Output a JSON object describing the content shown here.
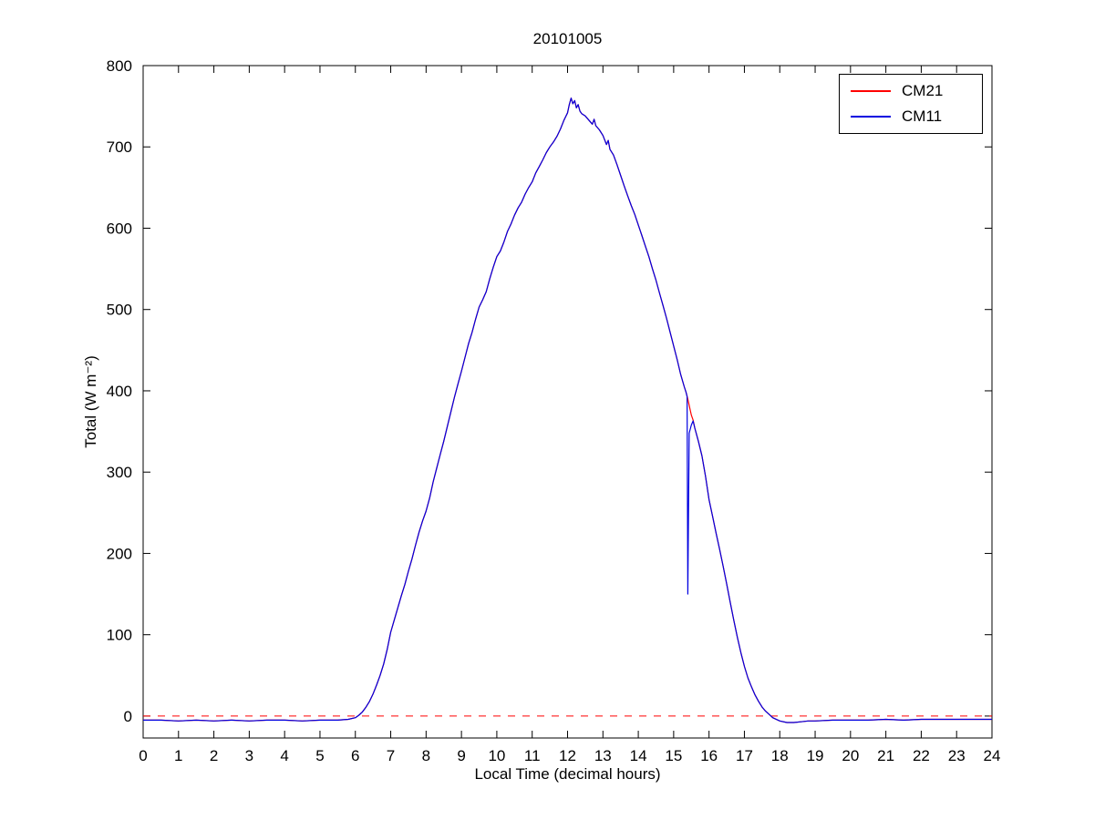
{
  "chart_data": {
    "type": "line",
    "title": "20101005",
    "xlabel": "Local Time (decimal hours)",
    "ylabel": "Total (W m⁻²)",
    "xlim": [
      0,
      24
    ],
    "ylim": [
      -27,
      800
    ],
    "xticks": [
      0,
      1,
      2,
      3,
      4,
      5,
      6,
      7,
      8,
      9,
      10,
      11,
      12,
      13,
      14,
      15,
      16,
      17,
      18,
      19,
      20,
      21,
      22,
      23,
      24
    ],
    "yticks": [
      0,
      100,
      200,
      300,
      400,
      500,
      600,
      700,
      800
    ],
    "grid": false,
    "legend_position": "top-right",
    "reference_line": {
      "y": 0,
      "color": "#FF0000",
      "style": "dashed"
    },
    "series": [
      {
        "name": "CM21",
        "color": "#FF0000",
        "points": [
          [
            0,
            -5
          ],
          [
            0.5,
            -5
          ],
          [
            1,
            -6
          ],
          [
            1.5,
            -5
          ],
          [
            2,
            -6
          ],
          [
            2.5,
            -5
          ],
          [
            3,
            -6
          ],
          [
            3.5,
            -5
          ],
          [
            4,
            -5
          ],
          [
            4.5,
            -6
          ],
          [
            5,
            -5
          ],
          [
            5.5,
            -5
          ],
          [
            5.8,
            -4
          ],
          [
            6,
            -2
          ],
          [
            6.1,
            1
          ],
          [
            6.2,
            5
          ],
          [
            6.3,
            11
          ],
          [
            6.4,
            18
          ],
          [
            6.5,
            27
          ],
          [
            6.6,
            38
          ],
          [
            6.7,
            50
          ],
          [
            6.8,
            64
          ],
          [
            6.9,
            82
          ],
          [
            7,
            103
          ],
          [
            7.1,
            118
          ],
          [
            7.2,
            133
          ],
          [
            7.3,
            148
          ],
          [
            7.4,
            162
          ],
          [
            7.5,
            178
          ],
          [
            7.6,
            193
          ],
          [
            7.7,
            210
          ],
          [
            7.8,
            226
          ],
          [
            7.9,
            240
          ],
          [
            8,
            252
          ],
          [
            8.1,
            268
          ],
          [
            8.2,
            288
          ],
          [
            8.3,
            305
          ],
          [
            8.4,
            322
          ],
          [
            8.5,
            338
          ],
          [
            8.6,
            356
          ],
          [
            8.7,
            374
          ],
          [
            8.8,
            392
          ],
          [
            8.9,
            408
          ],
          [
            9,
            424
          ],
          [
            9.1,
            441
          ],
          [
            9.2,
            458
          ],
          [
            9.3,
            472
          ],
          [
            9.4,
            488
          ],
          [
            9.5,
            503
          ],
          [
            9.6,
            512
          ],
          [
            9.7,
            522
          ],
          [
            9.8,
            538
          ],
          [
            9.9,
            552
          ],
          [
            10,
            565
          ],
          [
            10.1,
            572
          ],
          [
            10.2,
            583
          ],
          [
            10.3,
            596
          ],
          [
            10.4,
            605
          ],
          [
            10.5,
            616
          ],
          [
            10.6,
            625
          ],
          [
            10.7,
            632
          ],
          [
            10.8,
            642
          ],
          [
            10.9,
            650
          ],
          [
            11,
            657
          ],
          [
            11.1,
            668
          ],
          [
            11.2,
            676
          ],
          [
            11.3,
            684
          ],
          [
            11.4,
            693
          ],
          [
            11.5,
            700
          ],
          [
            11.6,
            706
          ],
          [
            11.7,
            713
          ],
          [
            11.8,
            722
          ],
          [
            11.9,
            733
          ],
          [
            12,
            742
          ],
          [
            12.05,
            752
          ],
          [
            12.1,
            760
          ],
          [
            12.15,
            753
          ],
          [
            12.2,
            757
          ],
          [
            12.25,
            748
          ],
          [
            12.3,
            752
          ],
          [
            12.35,
            744
          ],
          [
            12.4,
            741
          ],
          [
            12.5,
            738
          ],
          [
            12.6,
            733
          ],
          [
            12.7,
            728
          ],
          [
            12.75,
            734
          ],
          [
            12.8,
            726
          ],
          [
            12.9,
            721
          ],
          [
            13,
            714
          ],
          [
            13.1,
            703
          ],
          [
            13.15,
            708
          ],
          [
            13.2,
            697
          ],
          [
            13.3,
            690
          ],
          [
            13.4,
            678
          ],
          [
            13.5,
            665
          ],
          [
            13.6,
            652
          ],
          [
            13.7,
            640
          ],
          [
            13.8,
            628
          ],
          [
            13.9,
            617
          ],
          [
            14,
            604
          ],
          [
            14.1,
            591
          ],
          [
            14.2,
            578
          ],
          [
            14.3,
            565
          ],
          [
            14.4,
            550
          ],
          [
            14.5,
            536
          ],
          [
            14.6,
            520
          ],
          [
            14.7,
            505
          ],
          [
            14.8,
            489
          ],
          [
            14.9,
            472
          ],
          [
            15,
            455
          ],
          [
            15.1,
            438
          ],
          [
            15.2,
            420
          ],
          [
            15.3,
            405
          ],
          [
            15.35,
            398
          ],
          [
            15.4,
            390
          ],
          [
            15.45,
            380
          ],
          [
            15.5,
            370
          ],
          [
            15.55,
            364
          ],
          [
            15.6,
            354
          ],
          [
            15.7,
            338
          ],
          [
            15.8,
            320
          ],
          [
            15.9,
            295
          ],
          [
            16,
            266
          ],
          [
            16.1,
            246
          ],
          [
            16.2,
            225
          ],
          [
            16.3,
            205
          ],
          [
            16.4,
            184
          ],
          [
            16.5,
            162
          ],
          [
            16.6,
            140
          ],
          [
            16.7,
            118
          ],
          [
            16.8,
            97
          ],
          [
            16.9,
            78
          ],
          [
            17,
            61
          ],
          [
            17.1,
            47
          ],
          [
            17.2,
            36
          ],
          [
            17.3,
            26
          ],
          [
            17.4,
            18
          ],
          [
            17.5,
            11
          ],
          [
            17.6,
            6
          ],
          [
            17.7,
            2
          ],
          [
            17.8,
            -2
          ],
          [
            18,
            -6
          ],
          [
            18.2,
            -8
          ],
          [
            18.4,
            -8
          ],
          [
            18.6,
            -7
          ],
          [
            18.8,
            -6
          ],
          [
            19,
            -6
          ],
          [
            19.5,
            -5
          ],
          [
            20,
            -5
          ],
          [
            20.5,
            -5
          ],
          [
            21,
            -4
          ],
          [
            21.5,
            -5
          ],
          [
            22,
            -4
          ],
          [
            22.5,
            -4
          ],
          [
            23,
            -4
          ],
          [
            23.5,
            -4
          ],
          [
            24,
            -4
          ]
        ]
      },
      {
        "name": "CM11",
        "color": "#0000E0",
        "points": [
          [
            0,
            -5
          ],
          [
            0.5,
            -5
          ],
          [
            1,
            -6
          ],
          [
            1.5,
            -5
          ],
          [
            2,
            -6
          ],
          [
            2.5,
            -5
          ],
          [
            3,
            -6
          ],
          [
            3.5,
            -5
          ],
          [
            4,
            -5
          ],
          [
            4.5,
            -6
          ],
          [
            5,
            -5
          ],
          [
            5.5,
            -5
          ],
          [
            5.8,
            -4
          ],
          [
            6,
            -2
          ],
          [
            6.1,
            1
          ],
          [
            6.2,
            5
          ],
          [
            6.3,
            11
          ],
          [
            6.4,
            18
          ],
          [
            6.5,
            27
          ],
          [
            6.6,
            38
          ],
          [
            6.7,
            50
          ],
          [
            6.8,
            64
          ],
          [
            6.9,
            82
          ],
          [
            7,
            103
          ],
          [
            7.1,
            118
          ],
          [
            7.2,
            133
          ],
          [
            7.3,
            148
          ],
          [
            7.4,
            162
          ],
          [
            7.5,
            178
          ],
          [
            7.6,
            193
          ],
          [
            7.7,
            210
          ],
          [
            7.8,
            226
          ],
          [
            7.9,
            240
          ],
          [
            8,
            252
          ],
          [
            8.1,
            268
          ],
          [
            8.2,
            288
          ],
          [
            8.3,
            305
          ],
          [
            8.4,
            322
          ],
          [
            8.5,
            338
          ],
          [
            8.6,
            356
          ],
          [
            8.7,
            374
          ],
          [
            8.8,
            392
          ],
          [
            8.9,
            408
          ],
          [
            9,
            424
          ],
          [
            9.1,
            441
          ],
          [
            9.2,
            458
          ],
          [
            9.3,
            472
          ],
          [
            9.4,
            488
          ],
          [
            9.5,
            503
          ],
          [
            9.6,
            512
          ],
          [
            9.7,
            522
          ],
          [
            9.8,
            538
          ],
          [
            9.9,
            552
          ],
          [
            10,
            565
          ],
          [
            10.1,
            572
          ],
          [
            10.2,
            583
          ],
          [
            10.3,
            596
          ],
          [
            10.4,
            605
          ],
          [
            10.5,
            616
          ],
          [
            10.6,
            625
          ],
          [
            10.7,
            632
          ],
          [
            10.8,
            642
          ],
          [
            10.9,
            650
          ],
          [
            11,
            657
          ],
          [
            11.1,
            668
          ],
          [
            11.2,
            676
          ],
          [
            11.3,
            684
          ],
          [
            11.4,
            693
          ],
          [
            11.5,
            700
          ],
          [
            11.6,
            706
          ],
          [
            11.7,
            713
          ],
          [
            11.8,
            722
          ],
          [
            11.9,
            733
          ],
          [
            12,
            742
          ],
          [
            12.05,
            752
          ],
          [
            12.1,
            760
          ],
          [
            12.15,
            753
          ],
          [
            12.2,
            757
          ],
          [
            12.25,
            748
          ],
          [
            12.3,
            752
          ],
          [
            12.35,
            744
          ],
          [
            12.4,
            741
          ],
          [
            12.5,
            738
          ],
          [
            12.6,
            733
          ],
          [
            12.7,
            728
          ],
          [
            12.75,
            734
          ],
          [
            12.8,
            726
          ],
          [
            12.9,
            721
          ],
          [
            13,
            714
          ],
          [
            13.1,
            703
          ],
          [
            13.15,
            708
          ],
          [
            13.2,
            697
          ],
          [
            13.3,
            690
          ],
          [
            13.4,
            678
          ],
          [
            13.5,
            665
          ],
          [
            13.6,
            652
          ],
          [
            13.7,
            640
          ],
          [
            13.8,
            628
          ],
          [
            13.9,
            617
          ],
          [
            14,
            604
          ],
          [
            14.1,
            591
          ],
          [
            14.2,
            578
          ],
          [
            14.3,
            565
          ],
          [
            14.4,
            550
          ],
          [
            14.5,
            536
          ],
          [
            14.6,
            520
          ],
          [
            14.7,
            505
          ],
          [
            14.8,
            489
          ],
          [
            14.9,
            472
          ],
          [
            15,
            455
          ],
          [
            15.1,
            438
          ],
          [
            15.2,
            420
          ],
          [
            15.3,
            405
          ],
          [
            15.35,
            398
          ],
          [
            15.38,
            393
          ],
          [
            15.4,
            150
          ],
          [
            15.44,
            348
          ],
          [
            15.5,
            358
          ],
          [
            15.55,
            363
          ],
          [
            15.6,
            354
          ],
          [
            15.7,
            338
          ],
          [
            15.8,
            320
          ],
          [
            15.9,
            295
          ],
          [
            16,
            266
          ],
          [
            16.1,
            246
          ],
          [
            16.2,
            225
          ],
          [
            16.3,
            205
          ],
          [
            16.4,
            184
          ],
          [
            16.5,
            162
          ],
          [
            16.6,
            140
          ],
          [
            16.7,
            118
          ],
          [
            16.8,
            97
          ],
          [
            16.9,
            78
          ],
          [
            17,
            61
          ],
          [
            17.1,
            47
          ],
          [
            17.2,
            36
          ],
          [
            17.3,
            26
          ],
          [
            17.4,
            18
          ],
          [
            17.5,
            11
          ],
          [
            17.6,
            6
          ],
          [
            17.7,
            2
          ],
          [
            17.8,
            -2
          ],
          [
            18,
            -6
          ],
          [
            18.2,
            -8
          ],
          [
            18.4,
            -8
          ],
          [
            18.6,
            -7
          ],
          [
            18.8,
            -6
          ],
          [
            19,
            -6
          ],
          [
            19.5,
            -5
          ],
          [
            20,
            -5
          ],
          [
            20.5,
            -5
          ],
          [
            21,
            -4
          ],
          [
            21.5,
            -5
          ],
          [
            22,
            -4
          ],
          [
            22.5,
            -4
          ],
          [
            23,
            -4
          ],
          [
            23.5,
            -4
          ],
          [
            24,
            -4
          ]
        ]
      }
    ]
  }
}
